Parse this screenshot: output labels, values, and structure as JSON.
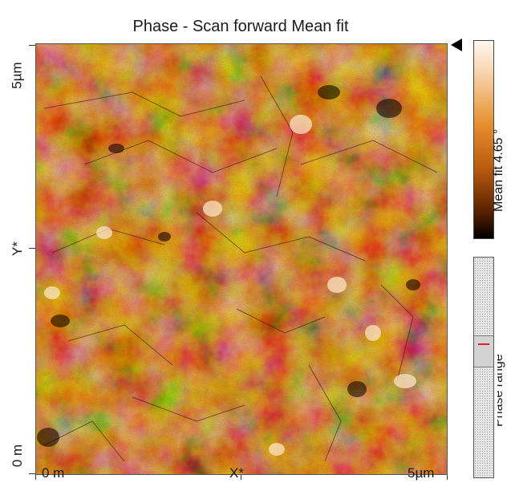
{
  "title": "Phase - Scan forward   Mean fit",
  "y_axis": {
    "top_label": "5µm",
    "mid_label": "Y*",
    "bottom_label": "0 m"
  },
  "x_axis": {
    "left_label": "0 m",
    "mid_label": "X*",
    "right_label": "5µm"
  },
  "colorbar": {
    "label": "Mean fit 4.65 °"
  },
  "range_slider": {
    "label": "Phase range"
  },
  "colors": {
    "dark": "#1a0800",
    "mid": "#d9761c",
    "light": "#f9e6cc"
  }
}
